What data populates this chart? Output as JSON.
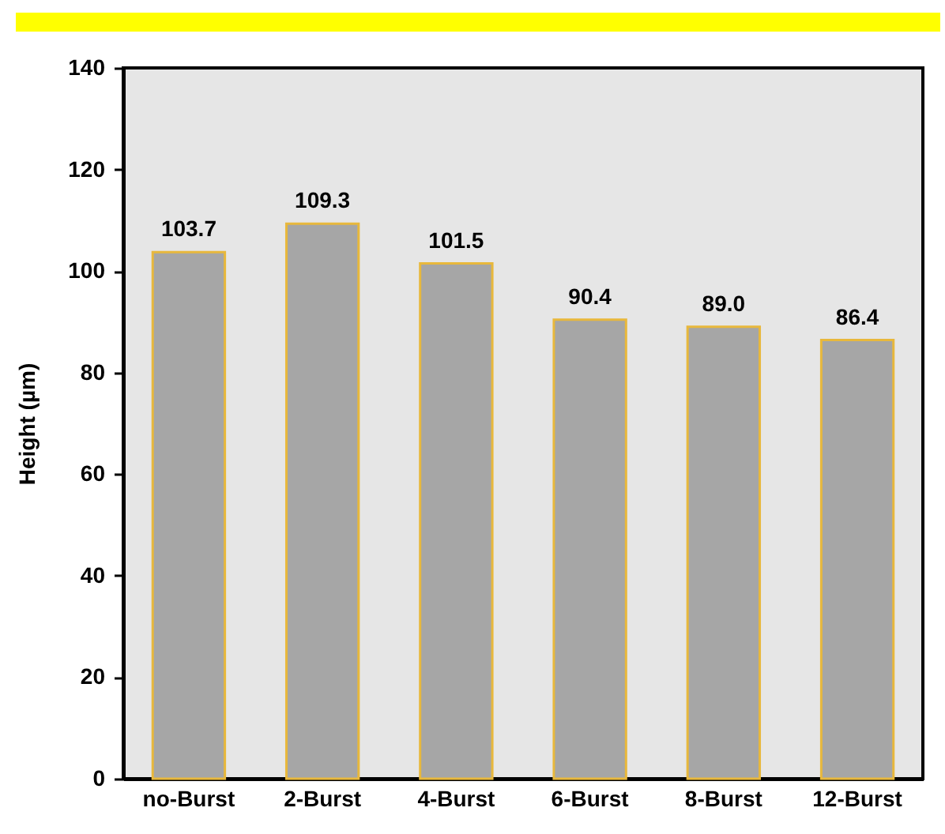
{
  "chart_data": {
    "type": "bar",
    "ylabel": "Height (µm)",
    "categories": [
      "no-Burst",
      "2-Burst",
      "4-Burst",
      "6-Burst",
      "8-Burst",
      "12-Burst"
    ],
    "values": [
      103.7,
      109.3,
      101.5,
      90.4,
      89.0,
      86.4
    ],
    "color": "#a6a6a6",
    "ylim": [
      0,
      140
    ],
    "yticks": [
      0,
      20,
      40,
      60,
      80,
      100,
      120,
      140
    ],
    "value_labels": [
      "103.7",
      "109.3",
      "101.5",
      "90.4",
      "89.0",
      "86.4"
    ]
  }
}
